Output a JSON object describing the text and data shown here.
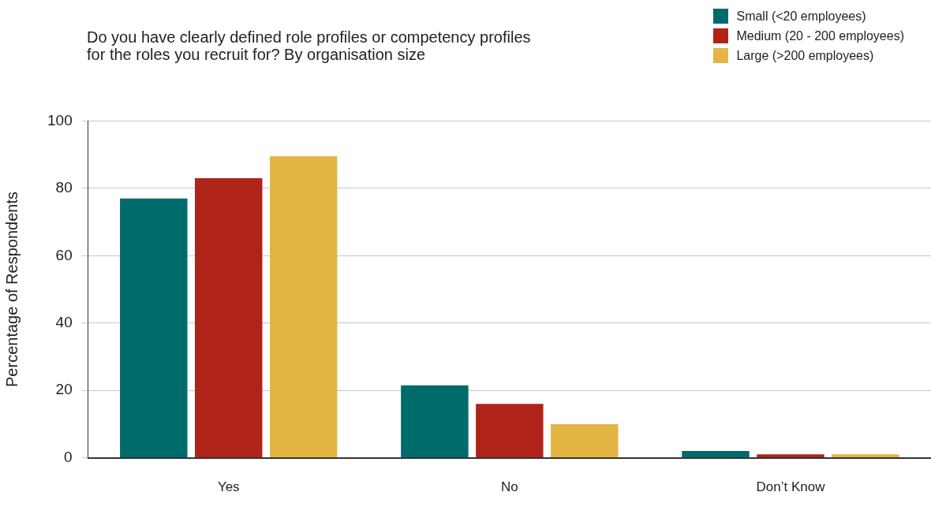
{
  "chart_data": {
    "type": "bar",
    "title": "Do you have clearly defined role profiles or competency profiles\nfor the roles you recruit for? By organisation size",
    "ylabel": "Percentage of Respondents",
    "categories": [
      "Yes",
      "No",
      "Don’t Know"
    ],
    "series": [
      {
        "name": "Small (<20 employees)",
        "color": "#006b6b",
        "values": [
          77,
          21.5,
          2
        ]
      },
      {
        "name": "Medium (20 - 200 employees)",
        "color": "#b02318",
        "values": [
          83,
          16,
          1
        ]
      },
      {
        "name": "Large (>200 employees)",
        "color": "#e3b542",
        "values": [
          89.5,
          10,
          1
        ]
      }
    ],
    "ylim": [
      0,
      100
    ],
    "yticks": [
      0,
      20,
      40,
      60,
      80,
      100
    ],
    "grid": "y",
    "legend": "top right"
  }
}
